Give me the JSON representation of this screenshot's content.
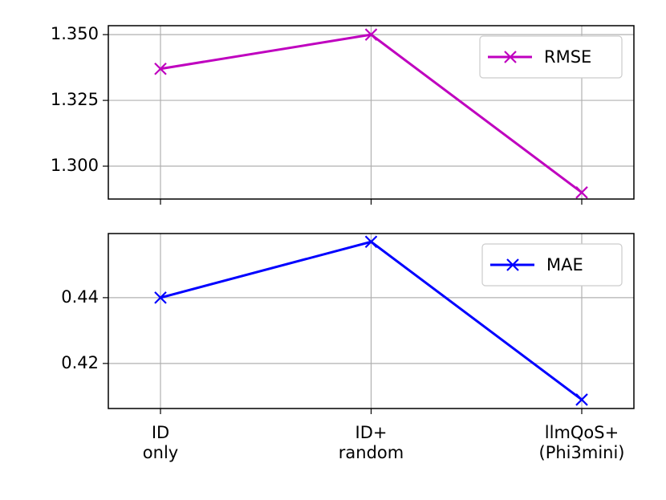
{
  "chart_data": [
    {
      "type": "line",
      "series": [
        {
          "name": "RMSE",
          "color": "#bf00bf",
          "values": [
            1.337,
            1.35,
            1.29
          ]
        }
      ],
      "ylim": [
        1.2875,
        1.3534
      ],
      "yticks": [
        {
          "value": 1.3,
          "label": "1.300"
        },
        {
          "value": 1.325,
          "label": "1.325"
        },
        {
          "value": 1.35,
          "label": "1.350"
        }
      ],
      "grid": true,
      "legend": "upper right"
    },
    {
      "type": "line",
      "categories": [
        "ID\nonly",
        "ID+\nrandom",
        "llmQoS+\n(Phi3mini)"
      ],
      "series": [
        {
          "name": "MAE",
          "color": "#0000ff",
          "values": [
            0.44,
            0.457,
            0.409
          ]
        }
      ],
      "ylim": [
        0.4063,
        0.4595
      ],
      "yticks": [
        0.42,
        0.44
      ],
      "grid": true,
      "legend": "upper right"
    }
  ]
}
